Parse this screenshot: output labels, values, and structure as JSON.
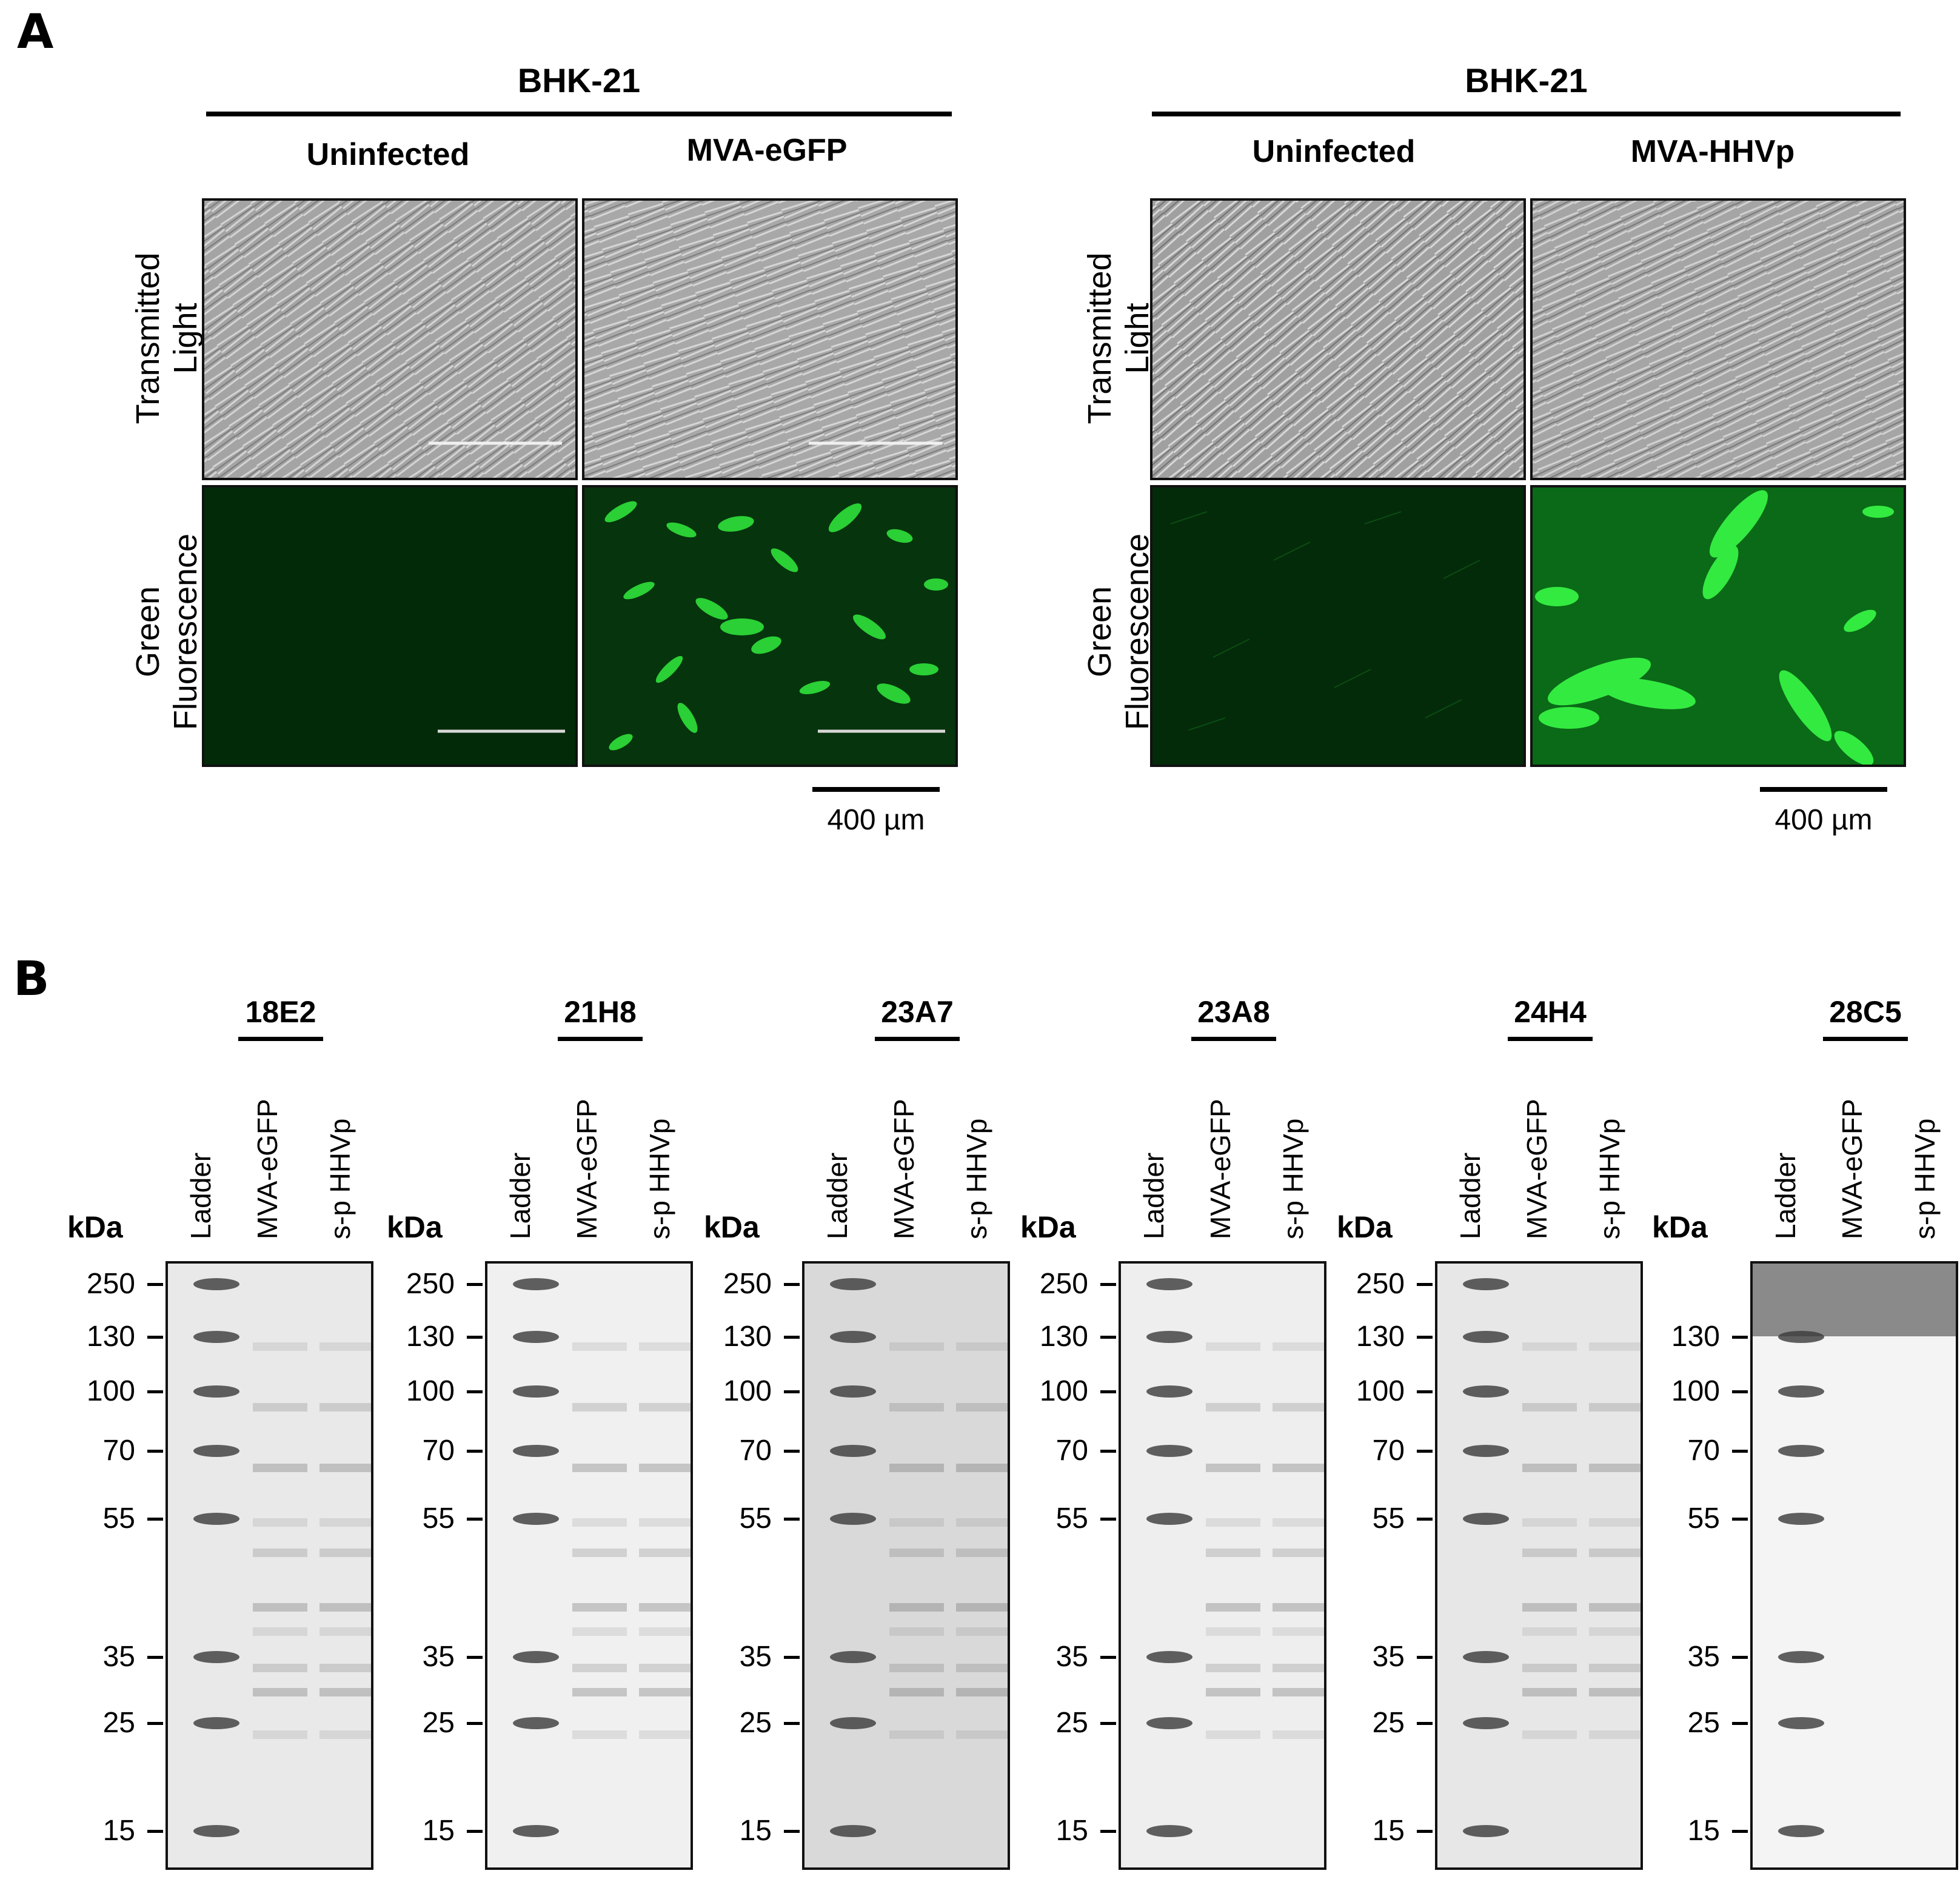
{
  "panel_a": {
    "letter": "A",
    "groups": [
      {
        "title": "BHK-21",
        "conditions": [
          "Uninfected",
          "MVA-eGFP"
        ]
      },
      {
        "title": "BHK-21",
        "conditions": [
          "Uninfected",
          "MVA-HHVp"
        ]
      }
    ],
    "row_labels": [
      {
        "line1": "Transmitted",
        "line2": "Light"
      },
      {
        "line1": "Green",
        "line2": "Fluorescence"
      }
    ],
    "scale_bar": "400 µm"
  },
  "panel_b": {
    "letter": "B",
    "kda_label": "kDa",
    "lane_labels": [
      "Ladder",
      "MVA-eGFP",
      "s-p HHVp"
    ],
    "blots": [
      {
        "antibody": "18E2",
        "markers": [
          "250",
          "130",
          "100",
          "70",
          "55",
          "35",
          "25",
          "15"
        ]
      },
      {
        "antibody": "21H8",
        "markers": [
          "250",
          "130",
          "100",
          "70",
          "55",
          "35",
          "25",
          "15"
        ]
      },
      {
        "antibody": "23A7",
        "markers": [
          "250",
          "130",
          "100",
          "70",
          "55",
          "35",
          "25",
          "15"
        ]
      },
      {
        "antibody": "23A8",
        "markers": [
          "250",
          "130",
          "100",
          "70",
          "55",
          "35",
          "25",
          "15"
        ]
      },
      {
        "antibody": "24H4",
        "markers": [
          "250",
          "130",
          "100",
          "70",
          "55",
          "35",
          "25",
          "15"
        ]
      },
      {
        "antibody": "28C5",
        "markers": [
          "130",
          "100",
          "70",
          "55",
          "35",
          "25",
          "15"
        ]
      }
    ]
  }
}
